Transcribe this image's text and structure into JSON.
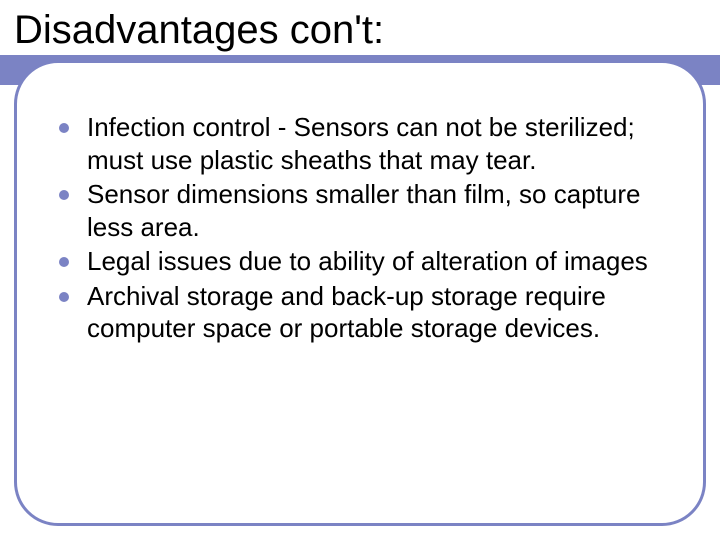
{
  "slide": {
    "title": "Disadvantages con't:",
    "title_fontsize": 40,
    "title_color": "#000000",
    "accent_color": "#7b83c4",
    "accent_bar_height": 30,
    "background_color": "#ffffff",
    "frame": {
      "border_color": "#7b83c4",
      "border_width": 3,
      "border_radius": 44
    },
    "bullets": [
      {
        "text": "Infection control - Sensors can not be sterilized; must use plastic sheaths that may tear."
      },
      {
        "text": "Sensor dimensions smaller than film, so capture less area."
      },
      {
        "text": "Legal issues due to ability of alteration of images"
      },
      {
        "text": "Archival storage and back-up storage require computer space or portable storage devices."
      }
    ],
    "bullet_fontsize": 26,
    "bullet_text_color": "#000000",
    "bullet_dot_color": "#7b83c4",
    "bullet_dot_size": 10
  }
}
